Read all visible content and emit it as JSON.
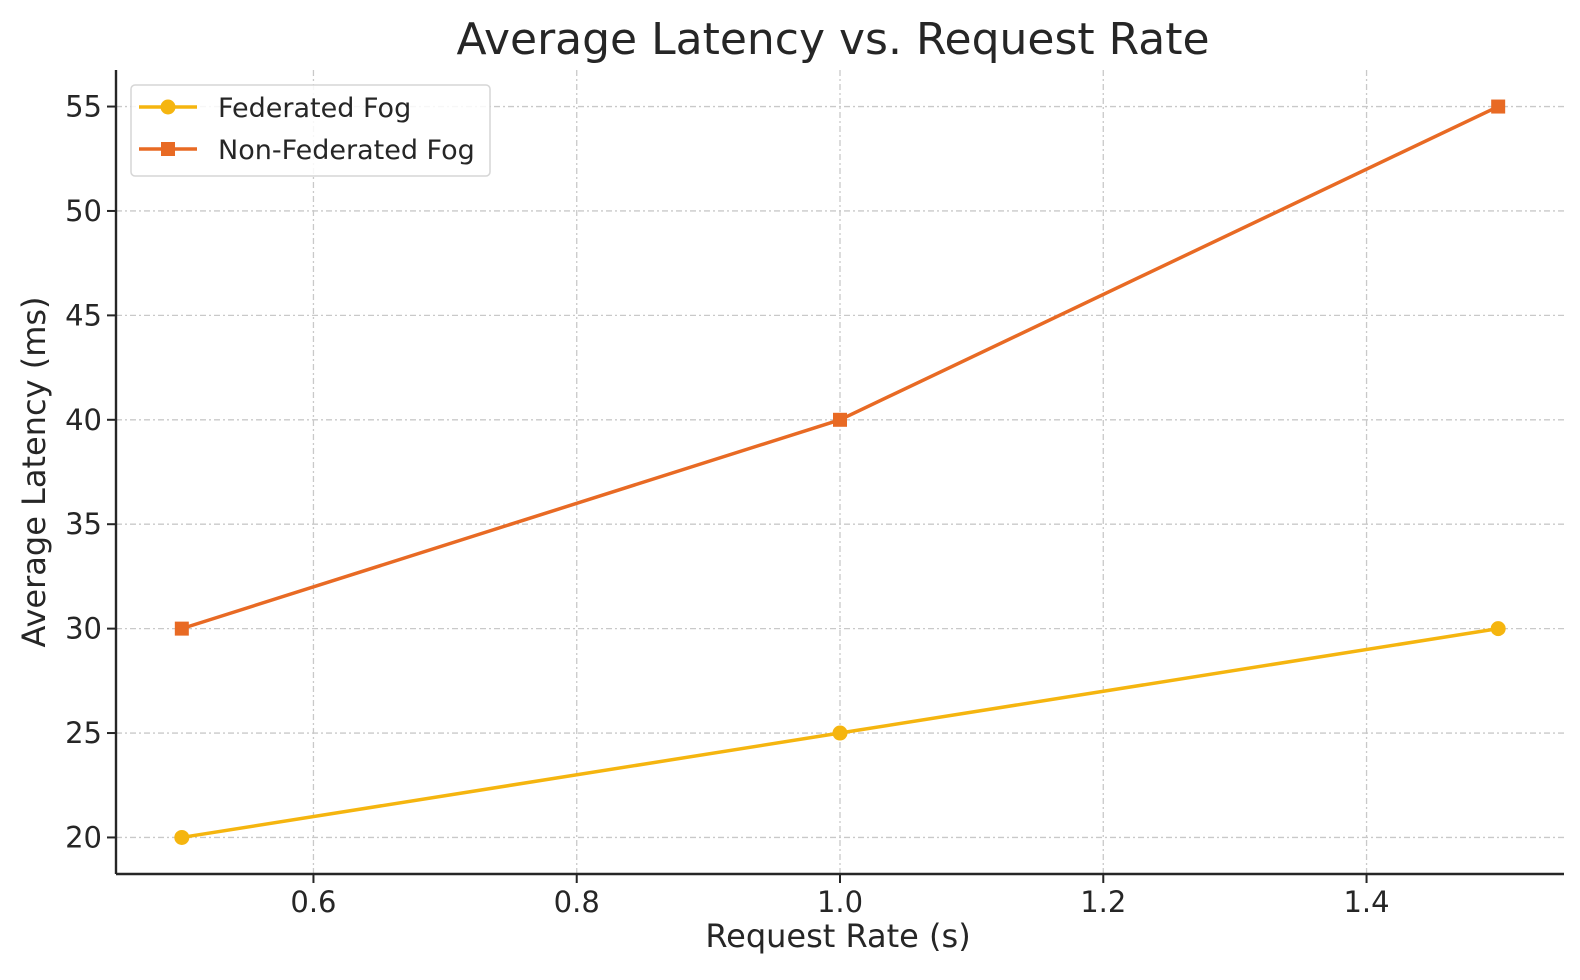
{
  "chart_data": {
    "type": "line",
    "title": "Average Latency vs. Request Rate",
    "xlabel": "Request Rate (s)",
    "ylabel": "Average Latency (ms)",
    "x": [
      0.5,
      1.0,
      1.5
    ],
    "xlim": [
      0.45,
      1.55
    ],
    "ylim": [
      18.25,
      56.75
    ],
    "xticks": [
      0.6,
      0.8,
      1.0,
      1.2,
      1.4
    ],
    "xtick_labels": [
      "0.6",
      "0.8",
      "1.0",
      "1.2",
      "1.4"
    ],
    "yticks": [
      20,
      25,
      30,
      35,
      40,
      45,
      50,
      55
    ],
    "ytick_labels": [
      "20",
      "25",
      "30",
      "35",
      "40",
      "45",
      "50",
      "55"
    ],
    "grid": true,
    "legend_position": "top-left",
    "series": [
      {
        "name": "Federated Fog",
        "values": [
          20,
          25,
          30
        ],
        "color": "#f5b50f",
        "marker": "circle"
      },
      {
        "name": "Non-Federated Fog",
        "values": [
          30,
          40,
          55
        ],
        "color": "#e86a24",
        "marker": "square"
      }
    ]
  }
}
